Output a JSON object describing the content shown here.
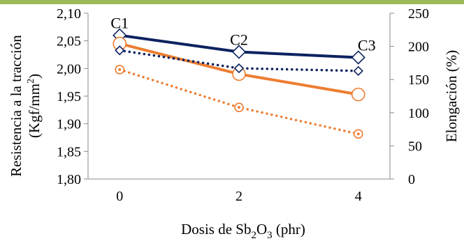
{
  "chart_data": {
    "type": "line",
    "categories": [
      "0",
      "2",
      "4"
    ],
    "x_values": [
      0,
      2,
      4
    ],
    "xlabel": "Dosis de Sb2O3 (phr)",
    "xlabel_parts": {
      "pre": "Dosis de Sb",
      "sub1": "2",
      "mid": "O",
      "sub2": "3",
      "post": " (phr)"
    },
    "ylabel_left": "Resistencia a la tracción (Kgf/mm2)",
    "ylabel_left_parts": {
      "line1": "Resistencia a la tracción",
      "line2_pre": "(Kgf/mm",
      "line2_sup": "2",
      "line2_post": ")"
    },
    "ylabel_right": "Elongación (%)",
    "ylim_left": [
      1.8,
      2.1
    ],
    "yticks_left": [
      "1,80",
      "1,85",
      "1,90",
      "1,95",
      "2,00",
      "2,05",
      "2,10"
    ],
    "ylim_right": [
      0,
      250
    ],
    "yticks_right": [
      "0",
      "50",
      "100",
      "150",
      "200",
      "250"
    ],
    "point_labels": [
      "C1",
      "C2",
      "C3"
    ],
    "grid": false,
    "colors": {
      "navy": "#0d2260",
      "orange": "#ed7d31"
    },
    "series": [
      {
        "axis": "left",
        "color": "#0d2260",
        "style": "solid",
        "marker": "diamond",
        "values": [
          2.06,
          2.03,
          2.02
        ]
      },
      {
        "axis": "left",
        "color": "#ed7d31",
        "style": "solid",
        "marker": "circle",
        "values": [
          2.045,
          1.99,
          1.953
        ]
      },
      {
        "axis": "right",
        "color": "#0d2260",
        "style": "dotted",
        "marker": "diamond",
        "values": [
          194,
          167,
          163
        ]
      },
      {
        "axis": "right",
        "color": "#ed7d31",
        "style": "dotted",
        "marker": "circle",
        "values": [
          165,
          108,
          68
        ]
      }
    ]
  }
}
